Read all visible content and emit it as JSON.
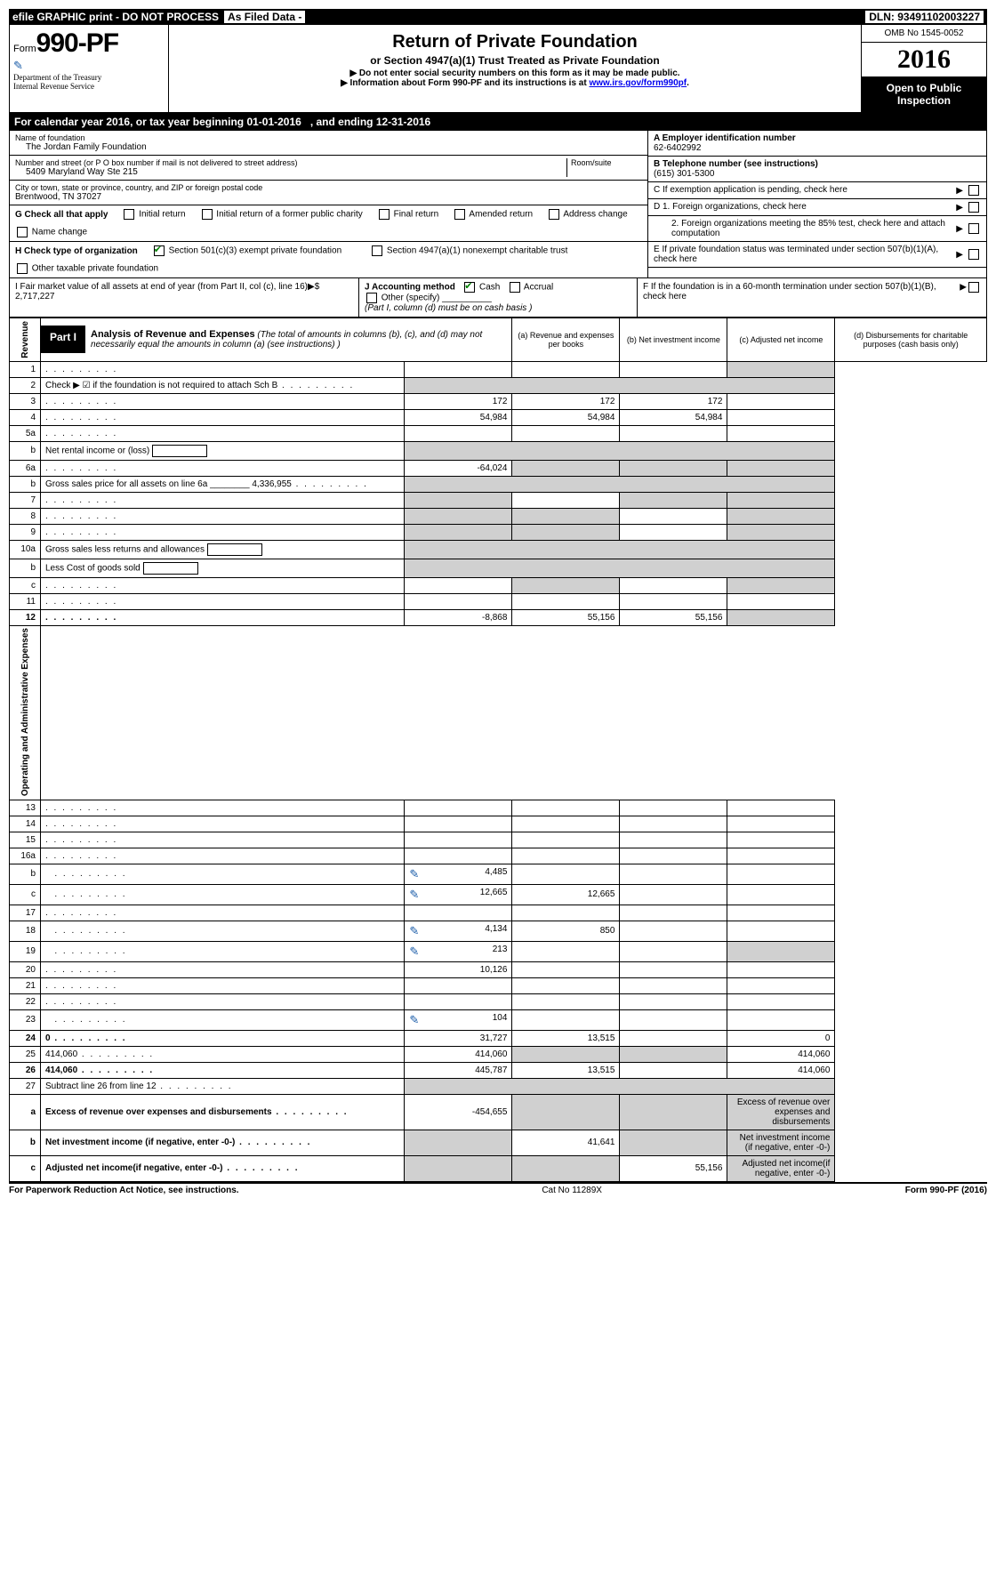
{
  "top_bar": {
    "efile": "efile GRAPHIC print - DO NOT PROCESS",
    "asfiled": "As Filed Data -",
    "dln": "DLN: 93491102003227"
  },
  "header": {
    "form_prefix": "Form",
    "form_number": "990-PF",
    "dept1": "Department of the Treasury",
    "dept2": "Internal Revenue Service",
    "title": "Return of Private Foundation",
    "subtitle": "or Section 4947(a)(1) Trust Treated as Private Foundation",
    "note1": "▶ Do not enter social security numbers on this form as it may be made public.",
    "note2_a": "▶ Information about Form 990-PF and its instructions is at ",
    "note2_link": "www.irs.gov/form990pf",
    "note2_b": ".",
    "omb": "OMB No 1545-0052",
    "year": "2016",
    "inspection": "Open to Public Inspection"
  },
  "calyear": {
    "a": "For calendar year 2016, or tax year beginning 01-01-2016",
    "b": ", and ending 12-31-2016"
  },
  "entity": {
    "name_label": "Name of foundation",
    "name": "The Jordan Family Foundation",
    "addr_label": "Number and street (or P O  box number if mail is not delivered to street address)",
    "room_label": "Room/suite",
    "addr": "5409 Maryland Way Ste 215",
    "city_label": "City or town, state or province, country, and ZIP or foreign postal code",
    "city": "Brentwood, TN  37027",
    "a_label": "A Employer identification number",
    "a_val": "62-6402992",
    "b_label": "B Telephone number (see instructions)",
    "b_val": "(615) 301-5300",
    "c_label": "C If exemption application is pending, check here",
    "d1": "D 1. Foreign organizations, check here",
    "d2": "2. Foreign organizations meeting the 85% test, check here and attach computation",
    "e": "E  If private foundation status was terminated under section 507(b)(1)(A), check here",
    "f": "F  If the foundation is in a 60-month termination under section 507(b)(1)(B), check here"
  },
  "g": {
    "label": "G Check all that apply",
    "opts": [
      "Initial return",
      "Initial return of a former public charity",
      "Final return",
      "Amended return",
      "Address change",
      "Name change"
    ]
  },
  "h": {
    "label": "H Check type of organization",
    "opt1": "Section 501(c)(3) exempt private foundation",
    "opt2": "Section 4947(a)(1) nonexempt charitable trust",
    "opt3": "Other taxable private foundation"
  },
  "i": {
    "label": "I Fair market value of all assets at end of year (from Part II, col  (c), line 16)▶$  2,717,227"
  },
  "j": {
    "label": "J Accounting method",
    "cash": "Cash",
    "accrual": "Accrual",
    "other": "Other (specify)",
    "note": "(Part I, column (d) must be on cash basis )"
  },
  "part1": {
    "label": "Part I",
    "title": "Analysis of Revenue and Expenses",
    "desc": " (The total of amounts in columns (b), (c), and (d) may not necessarily equal the amounts in column (a) (see instructions) )",
    "col_a": "(a) Revenue and expenses per books",
    "col_b": "(b) Net investment income",
    "col_c": "(c) Adjusted net income",
    "col_d": "(d) Disbursements for charitable purposes (cash basis only)"
  },
  "revenue_label": "Revenue",
  "opex_label": "Operating and Administrative Expenses",
  "rows": [
    {
      "n": "1",
      "d": "",
      "a": "",
      "b": "",
      "c": "",
      "greyD": true
    },
    {
      "n": "2",
      "d": "Check ▶ ☑ if the foundation is not required to attach Sch  B",
      "dotsOnly": true,
      "greyAll": true
    },
    {
      "n": "3",
      "d": "",
      "a": "172",
      "b": "172",
      "c": "172"
    },
    {
      "n": "4",
      "d": "",
      "a": "54,984",
      "b": "54,984",
      "c": "54,984"
    },
    {
      "n": "5a",
      "d": "",
      "a": "",
      "b": "",
      "c": ""
    },
    {
      "n": "b",
      "d": "Net rental income or (loss)",
      "inlineBox": true,
      "greyAll": true
    },
    {
      "n": "6a",
      "d": "",
      "a": "-64,024",
      "b": "",
      "c": "",
      "greyBCD": true
    },
    {
      "n": "b",
      "d": "Gross sales price for all assets on line 6a ________ 4,336,955",
      "greyAll": true
    },
    {
      "n": "7",
      "d": "",
      "a": "",
      "b": "",
      "c": "",
      "greyACD": true
    },
    {
      "n": "8",
      "d": "",
      "a": "",
      "b": "",
      "c": "",
      "greyABD": true
    },
    {
      "n": "9",
      "d": "",
      "a": "",
      "b": "",
      "c": "",
      "greyABD": true
    },
    {
      "n": "10a",
      "d": "Gross sales less returns and allowances",
      "inlineBox": true,
      "greyAll": true
    },
    {
      "n": "b",
      "d": "Less  Cost of goods sold",
      "inlineBox": true,
      "greyAll": true
    },
    {
      "n": "c",
      "d": "",
      "a": "",
      "b": "",
      "c": "",
      "greyBD": true
    },
    {
      "n": "11",
      "d": "",
      "a": "",
      "b": "",
      "c": ""
    },
    {
      "n": "12",
      "d": "",
      "bold": true,
      "a": "-8,868",
      "b": "55,156",
      "c": "55,156",
      "greyD": true
    }
  ],
  "oprows": [
    {
      "n": "13",
      "d": "",
      "a": "",
      "b": "",
      "c": ""
    },
    {
      "n": "14",
      "d": "",
      "a": "",
      "b": "",
      "c": ""
    },
    {
      "n": "15",
      "d": "",
      "a": "",
      "b": "",
      "c": ""
    },
    {
      "n": "16a",
      "d": "",
      "a": "",
      "b": "",
      "c": ""
    },
    {
      "n": "b",
      "d": "",
      "pencil": true,
      "a": "4,485",
      "b": "",
      "c": ""
    },
    {
      "n": "c",
      "d": "",
      "pencil": true,
      "a": "12,665",
      "b": "12,665",
      "c": ""
    },
    {
      "n": "17",
      "d": "",
      "a": "",
      "b": "",
      "c": ""
    },
    {
      "n": "18",
      "d": "",
      "pencil": true,
      "a": "4,134",
      "b": "850",
      "c": ""
    },
    {
      "n": "19",
      "d": "",
      "pencil": true,
      "a": "213",
      "b": "",
      "c": "",
      "greyD": true
    },
    {
      "n": "20",
      "d": "",
      "a": "10,126",
      "b": "",
      "c": ""
    },
    {
      "n": "21",
      "d": "",
      "a": "",
      "b": "",
      "c": ""
    },
    {
      "n": "22",
      "d": "",
      "a": "",
      "b": "",
      "c": ""
    },
    {
      "n": "23",
      "d": "",
      "pencil": true,
      "a": "104",
      "b": "",
      "c": ""
    },
    {
      "n": "24",
      "d": "0",
      "bold": true,
      "a": "31,727",
      "b": "13,515",
      "c": ""
    },
    {
      "n": "25",
      "d": "414,060",
      "a": "414,060",
      "b": "",
      "c": "",
      "greyBC": true
    },
    {
      "n": "26",
      "d": "414,060",
      "bold": true,
      "a": "445,787",
      "b": "13,515",
      "c": ""
    }
  ],
  "sumrows": [
    {
      "n": "27",
      "d": "Subtract line 26 from line 12",
      "greyAll": true
    },
    {
      "n": "a",
      "d": "Excess of revenue over expenses and disbursements",
      "bold": true,
      "a": "-454,655",
      "greyBCD": true
    },
    {
      "n": "b",
      "d": "Net investment income (if negative, enter -0-)",
      "bold": true,
      "b": "41,641",
      "greyACD": true
    },
    {
      "n": "c",
      "d": "Adjusted net income(if negative, enter -0-)",
      "bold": true,
      "c": "55,156",
      "greyABD": true
    }
  ],
  "footer": {
    "left": "For Paperwork Reduction Act Notice, see instructions.",
    "mid": "Cat  No  11289X",
    "right": "Form 990-PF (2016)"
  }
}
